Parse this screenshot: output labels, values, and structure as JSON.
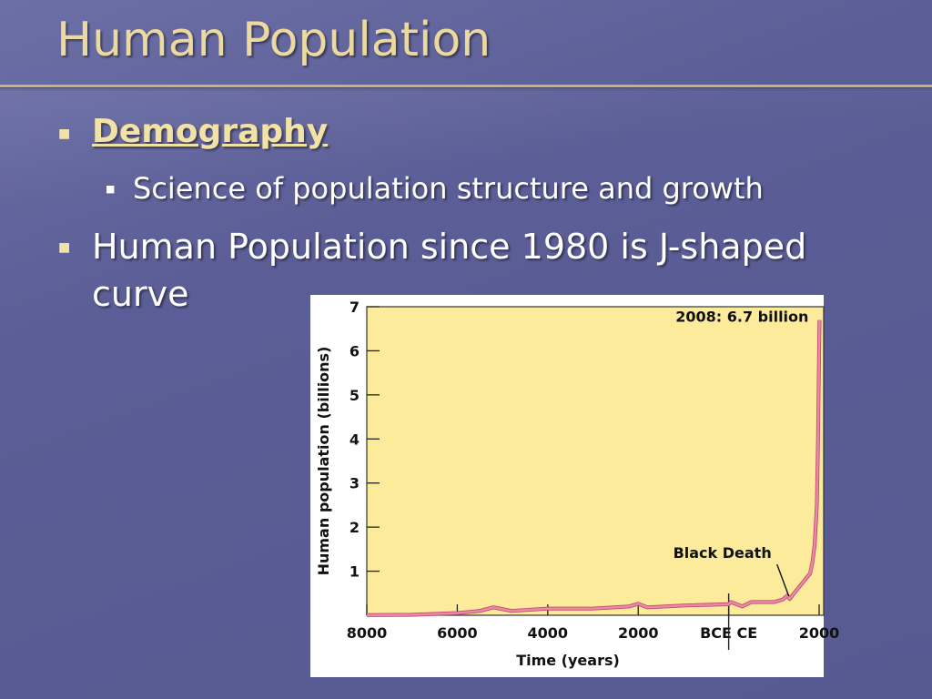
{
  "slide": {
    "title": "Human Population",
    "bullets": [
      {
        "text": "Demography"
      },
      {
        "text": "Science of population structure and growth"
      },
      {
        "text": "Human Population since 1980 is J-shaped curve"
      }
    ]
  },
  "colors": {
    "title": "#ecd9a0",
    "background": "#5b5e96",
    "plot_bg": "#fbeb9b",
    "line": "#c64a6e"
  },
  "chart_data": {
    "type": "line",
    "xlabel": "Time (years)",
    "ylabel": "Human population (billions)",
    "ylim": [
      0,
      7
    ],
    "xlim": [
      -8000,
      2100
    ],
    "yticks": [
      1,
      2,
      3,
      4,
      5,
      6,
      7
    ],
    "xticks": [
      {
        "value": -8000,
        "label": "8000"
      },
      {
        "value": -6000,
        "label": "6000"
      },
      {
        "value": -4000,
        "label": "4000"
      },
      {
        "value": -2000,
        "label": "2000"
      },
      {
        "value": 0,
        "label": "BCE CE"
      },
      {
        "value": 2000,
        "label": "2000"
      }
    ],
    "series": [
      {
        "x": [
          -8000,
          -7000,
          -6000,
          -5500,
          -5200,
          -4800,
          -4000,
          -3000,
          -2200,
          -2000,
          -1800,
          -1000,
          0,
          50,
          300,
          500,
          700,
          1000,
          1200,
          1300,
          1350,
          1400,
          1800,
          1850,
          1900,
          1950,
          1975,
          2008
        ],
        "y": [
          0.005,
          0.01,
          0.05,
          0.1,
          0.18,
          0.1,
          0.15,
          0.15,
          0.2,
          0.26,
          0.18,
          0.22,
          0.25,
          0.3,
          0.2,
          0.3,
          0.3,
          0.3,
          0.36,
          0.45,
          0.37,
          0.44,
          0.95,
          1.2,
          1.6,
          2.5,
          4.0,
          6.7
        ]
      }
    ],
    "annotations": [
      {
        "text": "2008: 6.7 billion",
        "x": 2008,
        "y": 6.7
      },
      {
        "text": "Black Death",
        "x": 1350,
        "y": 0.37
      }
    ]
  }
}
